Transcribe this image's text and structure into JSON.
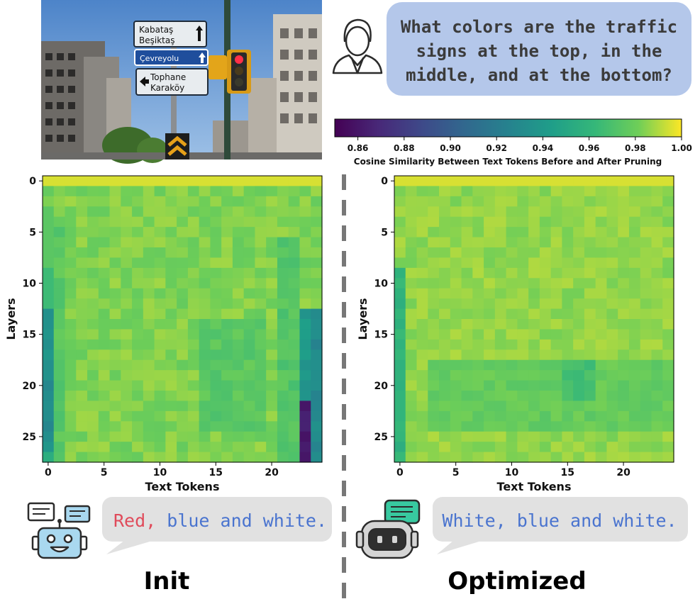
{
  "photo": {
    "sign_top_line1": "Kabataş",
    "sign_top_line2": "Beşiktaş",
    "sign_middle": "Çevreyolu",
    "sign_bottom_line1": "Tophane",
    "sign_bottom_line2": "Karaköy",
    "sign_top_color": "#e8ecef",
    "sign_middle_color": "#1f4e9c",
    "sign_bottom_color": "#e8ecef",
    "sky_color": "#5b8fd0"
  },
  "question": {
    "lines": [
      "What colors are the traffic",
      "signs at the top, in the",
      "middle, and at the bottom?"
    ],
    "bubble_color": "#b4c7ea",
    "icon": "user-icon"
  },
  "colorbar": {
    "ticks": [
      "0.86",
      "0.88",
      "0.90",
      "0.92",
      "0.94",
      "0.96",
      "0.98",
      "1.00"
    ],
    "label": "Cosine Similarity Between Text Tokens Before and After Pruning",
    "range": [
      0.85,
      1.0
    ],
    "colormap": "viridis"
  },
  "chart_data": [
    {
      "type": "heatmap",
      "panel": "Init",
      "xlabel": "Text Tokens",
      "ylabel": "Layers",
      "x_ticks": [
        "0",
        "5",
        "10",
        "15",
        "20"
      ],
      "y_ticks": [
        "0",
        "5",
        "10",
        "15",
        "20",
        "25"
      ],
      "n_tokens": 25,
      "n_layers": 28,
      "vmin": 0.85,
      "vmax": 1.0,
      "values_summary": "most cells 0.97-1.00; token 0 drops to ~0.93 at layers 13-26; token 23 drops to ~0.85 at layers 22-27"
    },
    {
      "type": "heatmap",
      "panel": "Optimized",
      "xlabel": "Text Tokens",
      "ylabel": "Layers",
      "x_ticks": [
        "0",
        "5",
        "10",
        "15",
        "20"
      ],
      "y_ticks": [
        "0",
        "5",
        "10",
        "15",
        "20",
        "25"
      ],
      "n_tokens": 25,
      "n_layers": 28,
      "vmin": 0.85,
      "vmax": 1.0,
      "values_summary": "nearly uniform 0.97-1.00; token 0 slightly lower (~0.955) at layers 9-27"
    }
  ],
  "answers": {
    "init": {
      "red_word": "Red,",
      "rest": " blue and white.",
      "title": "Init",
      "icon": "robot-icon"
    },
    "optimized": {
      "text": "White, blue and white.",
      "title": "Optimized",
      "icon": "robot-chat-icon"
    },
    "red_color": "#e04b5b",
    "blue_color": "#4a74cf",
    "bubble_color": "#e1e1e1"
  }
}
